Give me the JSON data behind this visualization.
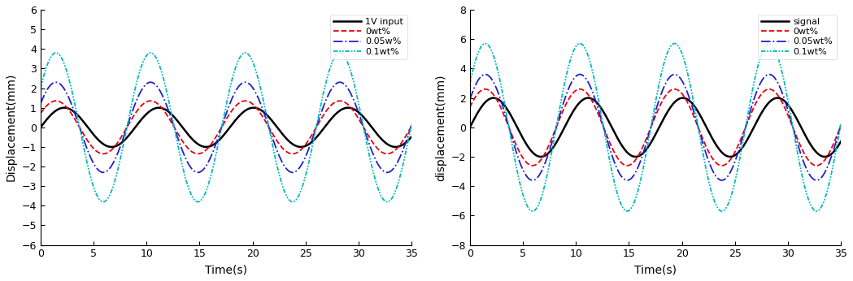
{
  "fig_width": 10.49,
  "fig_height": 3.46,
  "dpi": 100,
  "left_plot": {
    "xlabel": "Time(s)",
    "ylabel": "Displacement(mm)",
    "xlim": [
      0,
      35
    ],
    "ylim": [
      -6,
      6
    ],
    "yticks": [
      -6,
      -5,
      -4,
      -3,
      -2,
      -1,
      0,
      1,
      2,
      3,
      4,
      5,
      6
    ],
    "xticks": [
      0,
      5,
      10,
      15,
      20,
      25,
      30,
      35
    ],
    "signal": {
      "label": "1V input",
      "color": "#000000",
      "linestyle": "solid",
      "amplitude": 1.0,
      "freq": 0.112,
      "phase": 0.0,
      "decay": 0.0
    },
    "lines": [
      {
        "label": "0wt%",
        "color": "#E8000E",
        "linestyle": "dashed",
        "amplitude": 1.35,
        "freq": 0.112,
        "phase": 0.55,
        "decay": 0.0
      },
      {
        "label": "0.05w%",
        "color": "#2020CC",
        "linestyle": "dashdot",
        "amplitude": 2.3,
        "freq": 0.112,
        "phase": 0.55,
        "decay": 0.0
      },
      {
        "label": "0.1wt%",
        "color": "#00BBBB",
        "linestyle": "dashdotdotted",
        "amplitude": 3.8,
        "freq": 0.112,
        "phase": 0.55,
        "decay": 0.0
      }
    ]
  },
  "right_plot": {
    "xlabel": "Time(s)",
    "ylabel": "displacement(mm)",
    "xlim": [
      0,
      35
    ],
    "ylim": [
      -8,
      8
    ],
    "yticks": [
      -8,
      -6,
      -4,
      -2,
      0,
      2,
      4,
      6,
      8
    ],
    "xticks": [
      0,
      5,
      10,
      15,
      20,
      25,
      30,
      35
    ],
    "signal": {
      "label": "signal",
      "color": "#000000",
      "linestyle": "solid",
      "amplitude": 2.0,
      "freq": 0.112,
      "phase": 0.0,
      "decay": 0.0
    },
    "lines": [
      {
        "label": "0wt%",
        "color": "#E8000E",
        "linestyle": "dashed",
        "amplitude": 2.6,
        "freq": 0.112,
        "phase": 0.55,
        "decay": 0.0
      },
      {
        "label": "0.05wt%",
        "color": "#2020CC",
        "linestyle": "dashdot",
        "amplitude": 3.6,
        "freq": 0.112,
        "phase": 0.55,
        "decay": 0.0
      },
      {
        "label": "0.1wt%",
        "color": "#00BBBB",
        "linestyle": "dashdotdotted",
        "amplitude": 5.7,
        "freq": 0.112,
        "phase": 0.55,
        "decay": 0.0
      }
    ]
  }
}
